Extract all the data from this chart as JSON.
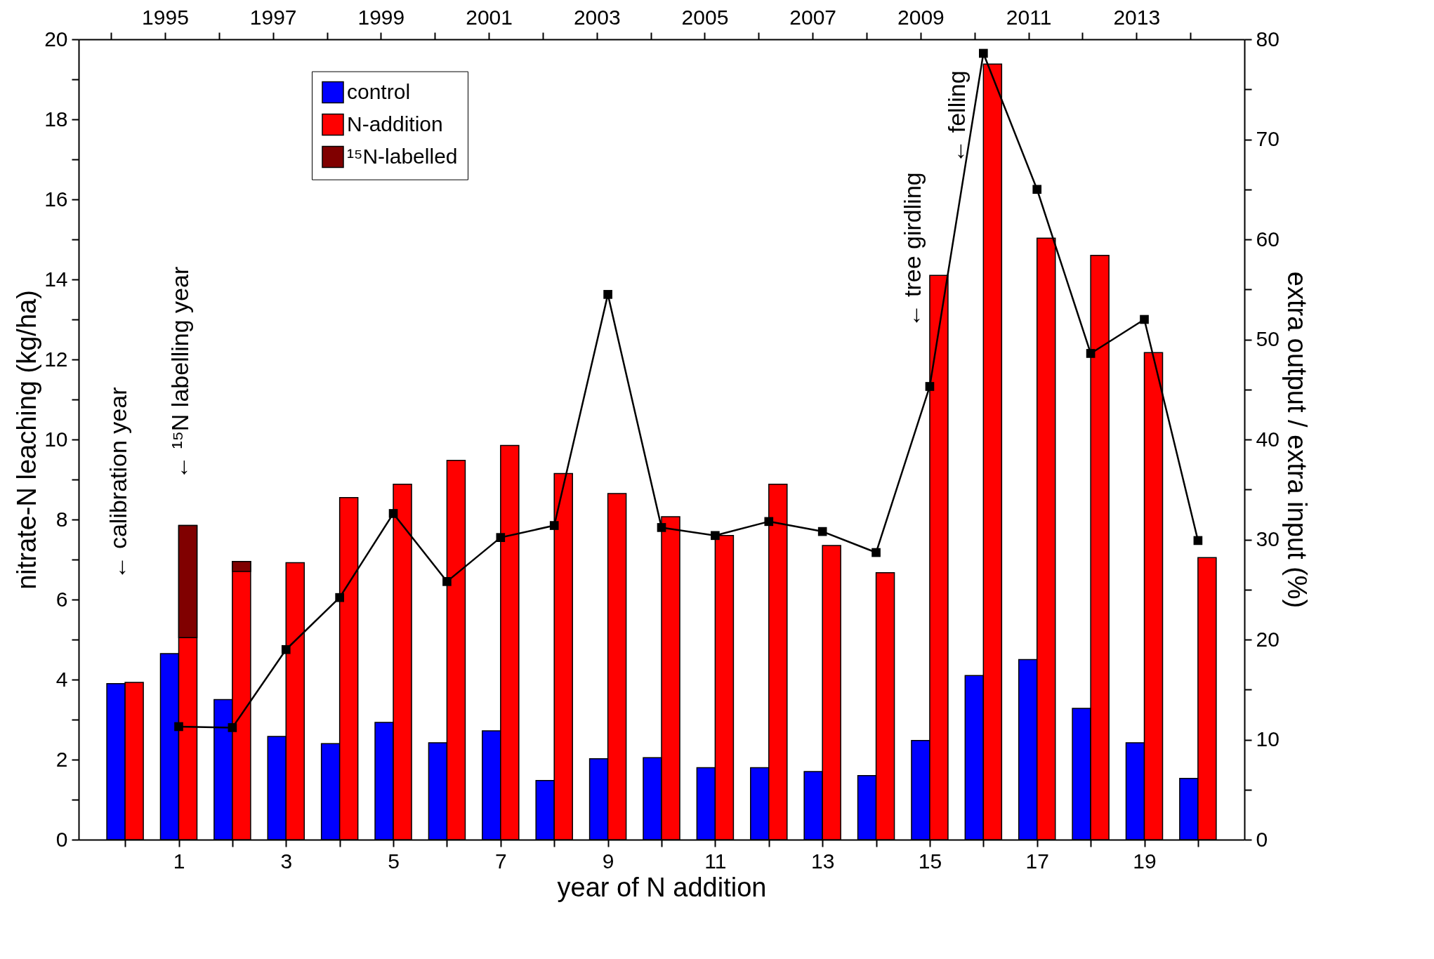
{
  "chart_data": {
    "type": "bar",
    "xlabel": "year of N addition",
    "ylabel": "nitrate-N leaching (kg/ha)",
    "y2label": "extra output / extra input (%)",
    "x": [
      0,
      1,
      2,
      3,
      4,
      5,
      6,
      7,
      8,
      9,
      10,
      11,
      12,
      13,
      14,
      15,
      16,
      17,
      18,
      19,
      20
    ],
    "series": [
      {
        "name": "control",
        "color": "#0000ff",
        "values": [
          3.9,
          4.65,
          3.5,
          2.58,
          2.4,
          2.93,
          2.42,
          2.72,
          1.48,
          2.02,
          2.05,
          1.8,
          1.8,
          1.7,
          1.6,
          2.48,
          4.1,
          4.5,
          3.28,
          2.42,
          1.53
        ]
      },
      {
        "name": "N-addition",
        "color": "#ff0000",
        "values": [
          3.93,
          7.85,
          6.95,
          6.92,
          8.55,
          8.88,
          9.48,
          9.85,
          9.15,
          8.65,
          8.07,
          7.6,
          8.88,
          7.35,
          6.67,
          14.1,
          19.38,
          15.03,
          14.6,
          12.17,
          7.05
        ]
      },
      {
        "name": "¹⁵N-labelled",
        "color": "#800000",
        "base": [
          null,
          5.05,
          6.7,
          null,
          null,
          null,
          null,
          null,
          null,
          null,
          null,
          null,
          null,
          null,
          null,
          null,
          null,
          null,
          null,
          null,
          null
        ],
        "values": [
          null,
          2.8,
          0.25,
          null,
          null,
          null,
          null,
          null,
          null,
          null,
          null,
          null,
          null,
          null,
          null,
          null,
          null,
          null,
          null,
          null,
          null
        ]
      },
      {
        "type": "line",
        "axis": "y2",
        "color": "#000000",
        "marker": "square",
        "line_style": "solid",
        "x": [
          1,
          2,
          3,
          4,
          5,
          6,
          7,
          8,
          9,
          10,
          11,
          12,
          13,
          14,
          15,
          16,
          17,
          18,
          19,
          20
        ],
        "values": [
          11.3,
          11.2,
          19,
          24.2,
          32.6,
          25.8,
          30.2,
          31.4,
          54.5,
          31.2,
          30.4,
          31.8,
          30.8,
          28.7,
          45.3,
          78.6,
          65,
          48.6,
          52,
          29.9
        ]
      }
    ],
    "xlim": [
      -0.8,
      20.8
    ],
    "xticks": [
      {
        "value": 0,
        "label": null
      },
      1,
      {
        "value": 2,
        "label": null
      },
      3,
      {
        "value": 4,
        "label": null
      },
      5,
      {
        "value": 6,
        "label": null
      },
      7,
      {
        "value": 8,
        "label": null
      },
      9,
      {
        "value": 10,
        "label": null
      },
      11,
      {
        "value": 12,
        "label": null
      },
      13,
      {
        "value": 14,
        "label": null
      },
      15,
      {
        "value": 16,
        "label": null
      },
      17,
      {
        "value": 18,
        "label": null
      },
      19,
      {
        "value": 20,
        "label": null
      }
    ],
    "x2lim": [
      1993.4,
      2015.0
    ],
    "x2ticks": [
      {
        "value": 1994,
        "label": null
      },
      1995,
      {
        "value": 1996,
        "label": null
      },
      1997,
      {
        "value": 1998,
        "label": null
      },
      1999,
      {
        "value": 2000,
        "label": null
      },
      2001,
      {
        "value": 2002,
        "label": null
      },
      2003,
      {
        "value": 2004,
        "label": null
      },
      2005,
      {
        "value": 2006,
        "label": null
      },
      2007,
      {
        "value": 2008,
        "label": null
      },
      2009,
      {
        "value": 2010,
        "label": null
      },
      2011,
      {
        "value": 2012,
        "label": null
      },
      2013,
      {
        "value": 2014,
        "label": null
      }
    ],
    "ylim": [
      0,
      20
    ],
    "yticks": [
      0,
      {
        "value": 1,
        "label": null
      },
      2,
      {
        "value": 3,
        "label": null
      },
      4,
      {
        "value": 5,
        "label": null
      },
      6,
      {
        "value": 7,
        "label": null
      },
      8,
      {
        "value": 9,
        "label": null
      },
      10,
      {
        "value": 11,
        "label": null
      },
      12,
      {
        "value": 13,
        "label": null
      },
      14,
      {
        "value": 15,
        "label": null
      },
      16,
      {
        "value": 17,
        "label": null
      },
      18,
      {
        "value": 19,
        "label": null
      },
      20
    ],
    "y2lim": [
      0,
      80
    ],
    "y2ticks": [
      0,
      {
        "value": 5,
        "label": null
      },
      10,
      {
        "value": 15,
        "label": null
      },
      20,
      {
        "value": 25,
        "label": null
      },
      30,
      {
        "value": 35,
        "label": null
      },
      40,
      {
        "value": 45,
        "label": null
      },
      50,
      {
        "value": 55,
        "label": null
      },
      60,
      {
        "value": 65,
        "label": null
      },
      70,
      {
        "value": 75,
        "label": null
      },
      80
    ],
    "annotations": [
      "← calibration year",
      "← ¹⁵N labelling year",
      "← tree girdling",
      "← felling"
    ],
    "legend": "top left",
    "grid": false
  }
}
